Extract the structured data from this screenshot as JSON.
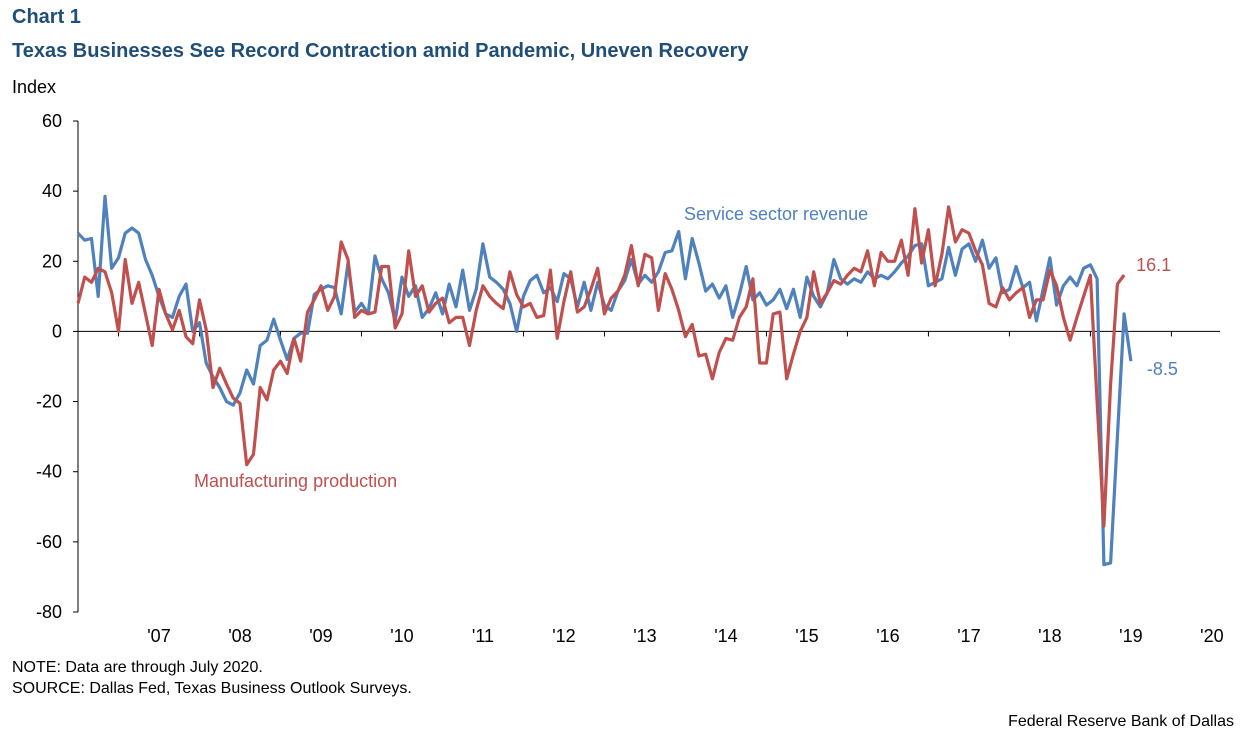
{
  "header": {
    "chart_label": "Chart 1",
    "title": "Texas Businesses See Record Contraction amid Pandemic, Uneven Recovery"
  },
  "footer": {
    "note": "NOTE: Data are through July 2020.",
    "source": "SOURCE: Dallas Fed, Texas Business Outlook Surveys.",
    "credit": "Federal Reserve Bank of Dallas"
  },
  "colors": {
    "service": "#4f81bd",
    "manufacturing": "#c0504d",
    "axis": "#000000"
  },
  "chart_data": {
    "type": "line",
    "title": "Texas Businesses See Record Contraction amid Pandemic, Uneven Recovery",
    "xlabel": "",
    "ylabel": "Index",
    "ylim": [
      -80,
      60
    ],
    "yticks": [
      "60",
      "40",
      "20",
      "0",
      "-20",
      "-40",
      "-60",
      "-80"
    ],
    "ytick_values": [
      60,
      40,
      20,
      0,
      -20,
      -40,
      -60,
      -80
    ],
    "xlim": [
      2006.5,
      2020.6
    ],
    "xticks": [
      "'07",
      "'08",
      "'09",
      "'10",
      "'11",
      "'12",
      "'13",
      "'14",
      "'15",
      "'16",
      "'17",
      "'18",
      "'19",
      "'20"
    ],
    "xtick_values": [
      2007.0,
      2008.0,
      2009.0,
      2010.0,
      2011.0,
      2012.0,
      2013.0,
      2014.0,
      2015.0,
      2016.0,
      2017.0,
      2018.0,
      2019.0,
      2020.0
    ],
    "grid": false,
    "series": [
      {
        "name": "Service sector revenue",
        "label": "Service sector revenue",
        "end_label": "-8.5",
        "x_start": 2006.5,
        "step": 0.08333,
        "values": [
          28,
          26,
          26.5,
          10,
          38.5,
          18,
          21,
          28,
          29.5,
          28,
          20.5,
          16,
          10,
          5,
          4,
          10,
          13.5,
          0,
          2.5,
          -9,
          -13,
          -16,
          -20,
          -21,
          -17.5,
          -11,
          -15,
          -4,
          -2.5,
          3.5,
          -2.5,
          -8,
          -2,
          -0.5,
          -0.5,
          10.5,
          12,
          13,
          12.5,
          5,
          19.5,
          5.5,
          8,
          5,
          21.5,
          15,
          11,
          3,
          15.5,
          10,
          13,
          4,
          6.5,
          11,
          5,
          13.5,
          7,
          17.5,
          6,
          12,
          25,
          15.5,
          14,
          12,
          8,
          0,
          10,
          14.5,
          16,
          11,
          12.5,
          8.5,
          16.5,
          15,
          7,
          14,
          6,
          14,
          7.5,
          6,
          11.5,
          14.5,
          20.5,
          13.5,
          16,
          14,
          17,
          22.5,
          23,
          28.5,
          15,
          26.5,
          19.5,
          11.5,
          13.5,
          9.5,
          13,
          4,
          10.5,
          18.5,
          9,
          11,
          7.5,
          9,
          12,
          6.5,
          12,
          4,
          15.5,
          10,
          7,
          11,
          20.5,
          15,
          13.5,
          15,
          14,
          17,
          15,
          16,
          15,
          17,
          19.5,
          21.5,
          24.5,
          25,
          13,
          14,
          15,
          24,
          16,
          23.5,
          25,
          20,
          26,
          18,
          21,
          11,
          12,
          18.5,
          12.5,
          14,
          3,
          12,
          21,
          7.5,
          13,
          15.5,
          13,
          18,
          19,
          15,
          -66.5,
          -66,
          -30,
          5,
          -8.5
        ]
      },
      {
        "name": "Manufacturing production",
        "label": "Manufacturing production",
        "end_label": "16.1",
        "x_start": 2006.5,
        "step": 0.08333,
        "values": [
          8,
          15.5,
          14,
          18,
          17,
          11,
          0,
          20.5,
          8,
          14,
          5,
          -4,
          12,
          5,
          0.5,
          6,
          -1.5,
          -3.5,
          9,
          0.5,
          -16,
          -10.5,
          -15,
          -19,
          -20.5,
          -38,
          -35,
          -16,
          -19.5,
          -11,
          -8.5,
          -12,
          -2,
          -8.5,
          5.5,
          9,
          13,
          6,
          10,
          25.5,
          20.5,
          4,
          6,
          5,
          5.5,
          18.5,
          18.5,
          1,
          5,
          23,
          10,
          13,
          5.5,
          8,
          9.5,
          2.5,
          4,
          4,
          -4,
          6,
          13,
          10,
          8,
          6.5,
          17,
          10.5,
          7,
          8,
          4,
          4.5,
          17.5,
          -2,
          8.5,
          17,
          5.5,
          7,
          12,
          18,
          5,
          9.5,
          11.5,
          16,
          24.5,
          13,
          22,
          21,
          6,
          16.5,
          12,
          6,
          -1.5,
          2,
          -7,
          -6.5,
          -13.5,
          -6,
          -2,
          -2.5,
          4,
          7,
          15,
          -9,
          -9,
          5,
          5.5,
          -13.5,
          -6.5,
          0,
          4,
          17,
          8,
          11,
          14.5,
          13.5,
          16,
          18,
          17,
          23,
          13,
          22.5,
          20,
          20,
          26,
          16,
          35,
          19.5,
          29,
          13,
          22,
          35.5,
          25.5,
          29,
          28,
          23,
          19,
          8,
          7,
          12.5,
          9,
          11,
          12.5,
          4,
          9,
          9,
          17.5,
          13,
          4,
          -2.5,
          4,
          10,
          16,
          -20,
          -55.5,
          -15,
          13.5,
          16.1
        ]
      }
    ],
    "annotations": [
      {
        "text": "Service sector revenue",
        "series": "Service sector revenue"
      },
      {
        "text": "Manufacturing production",
        "series": "Manufacturing production"
      }
    ]
  }
}
